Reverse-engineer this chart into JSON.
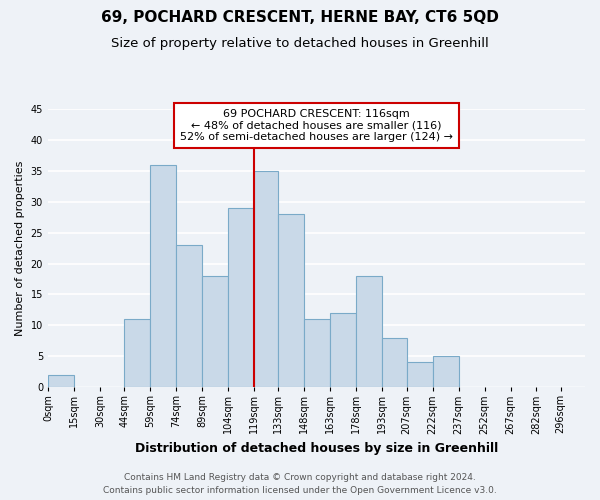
{
  "title": "69, POCHARD CRESCENT, HERNE BAY, CT6 5QD",
  "subtitle": "Size of property relative to detached houses in Greenhill",
  "xlabel": "Distribution of detached houses by size in Greenhill",
  "ylabel": "Number of detached properties",
  "bar_labels": [
    "0sqm",
    "15sqm",
    "30sqm",
    "44sqm",
    "59sqm",
    "74sqm",
    "89sqm",
    "104sqm",
    "119sqm",
    "133sqm",
    "148sqm",
    "163sqm",
    "178sqm",
    "193sqm",
    "207sqm",
    "222sqm",
    "237sqm",
    "252sqm",
    "267sqm",
    "282sqm",
    "296sqm"
  ],
  "bar_values": [
    2,
    0,
    0,
    11,
    36,
    23,
    18,
    29,
    35,
    28,
    11,
    12,
    18,
    8,
    4,
    5,
    0,
    0,
    0,
    0,
    0
  ],
  "bar_edges": [
    0,
    15,
    30,
    44,
    59,
    74,
    89,
    104,
    119,
    133,
    148,
    163,
    178,
    193,
    207,
    222,
    237,
    252,
    267,
    282,
    296
  ],
  "bar_color": "#c9d9e8",
  "bar_edgecolor": "#7aaac8",
  "vline_x": 119,
  "vline_color": "#cc0000",
  "ylim": [
    0,
    45
  ],
  "yticks": [
    0,
    5,
    10,
    15,
    20,
    25,
    30,
    35,
    40,
    45
  ],
  "annotation_title": "69 POCHARD CRESCENT: 116sqm",
  "annotation_line1": "← 48% of detached houses are smaller (116)",
  "annotation_line2": "52% of semi-detached houses are larger (124) →",
  "footer_line1": "Contains HM Land Registry data © Crown copyright and database right 2024.",
  "footer_line2": "Contains public sector information licensed under the Open Government Licence v3.0.",
  "bg_color": "#eef2f7",
  "grid_color": "#ffffff",
  "title_fontsize": 11,
  "subtitle_fontsize": 9.5,
  "xlabel_fontsize": 9,
  "ylabel_fontsize": 8,
  "tick_fontsize": 7,
  "annotation_fontsize": 8,
  "footer_fontsize": 6.5
}
